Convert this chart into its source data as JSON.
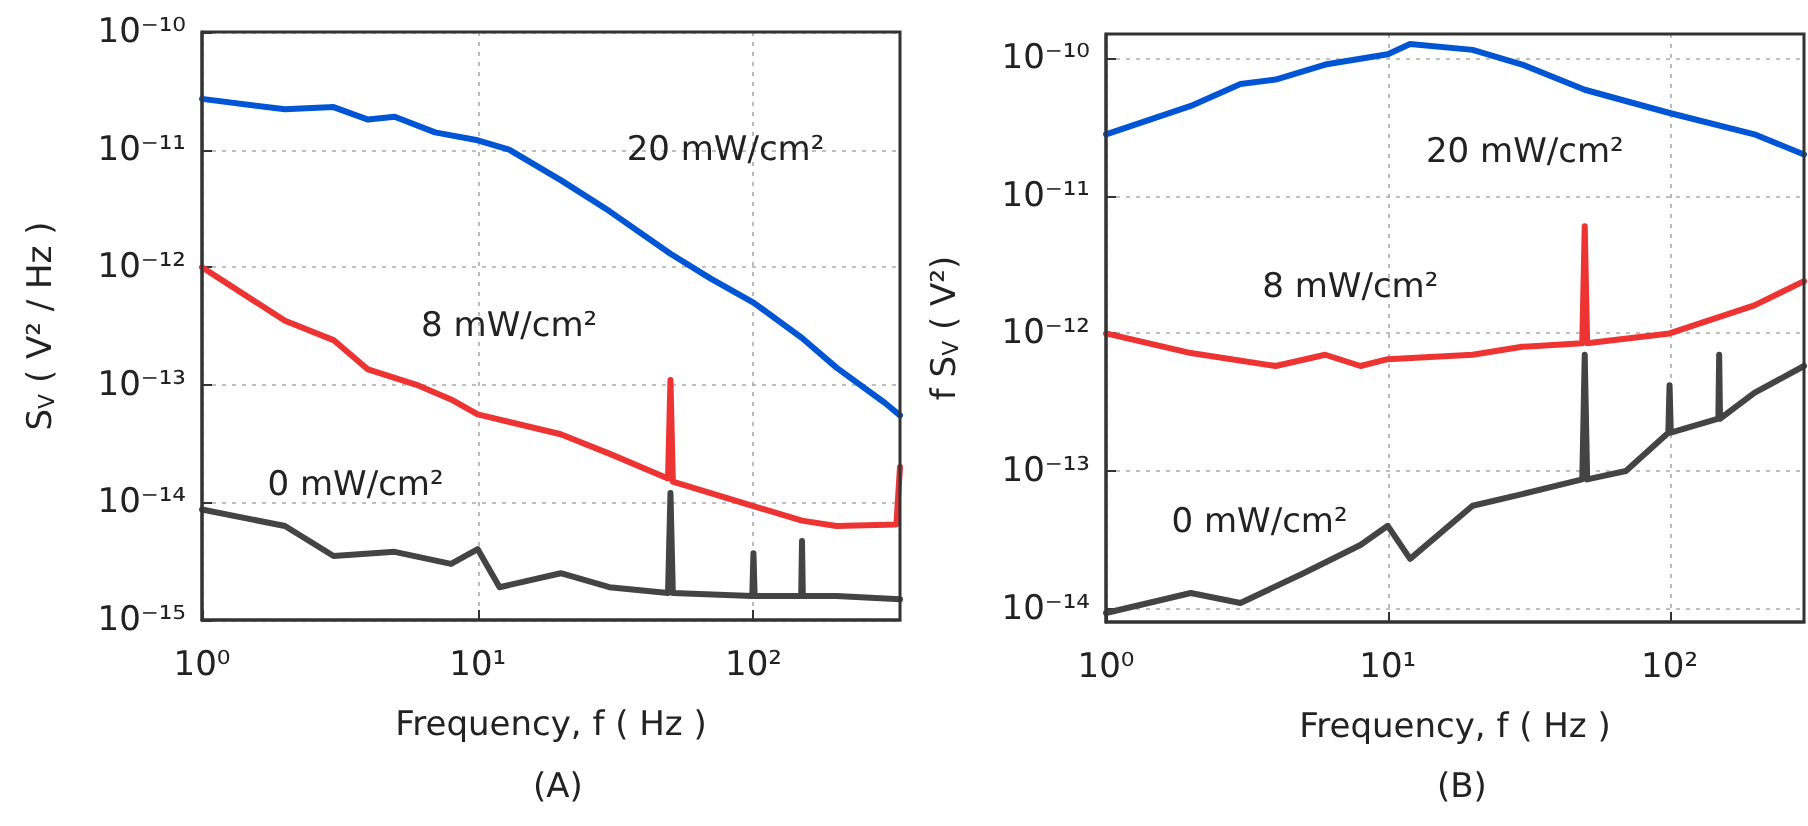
{
  "chart_data": [
    {
      "type": "line",
      "title": "(A)",
      "xlabel": "Frequency, f ( Hz )",
      "ylabel": "S$_{V}$ ( V² / Hz )",
      "log": "xy",
      "grid": true,
      "marker": "none",
      "line_style": "solid",
      "xlim": [
        1,
        340
      ],
      "ylim": [
        1e-15,
        1e-10
      ],
      "xticks": [
        {
          "value": 1,
          "label": "10⁰"
        },
        {
          "value": 10,
          "label": "10¹"
        },
        {
          "value": 100,
          "label": "10²"
        }
      ],
      "yticks": [
        {
          "value": 1e-15,
          "label": "10⁻¹⁵"
        },
        {
          "value": 1e-14,
          "label": "10⁻¹⁴"
        },
        {
          "value": 1e-13,
          "label": "10⁻¹³"
        },
        {
          "value": 1e-12,
          "label": "10⁻¹²"
        },
        {
          "value": 1e-11,
          "label": "10⁻¹¹"
        },
        {
          "value": 1e-10,
          "label": "10⁻¹⁰"
        }
      ],
      "series": [
        {
          "color": "#0055d4",
          "x": [
            1,
            2,
            3,
            4,
            5,
            7,
            10,
            13,
            20,
            30,
            50,
            70,
            100,
            150,
            200,
            300,
            340
          ],
          "values": [
            2.7e-11,
            2.2e-11,
            2.3e-11,
            1.8e-11,
            1.9e-11,
            1.4e-11,
            1.2e-11,
            1e-11,
            5.5e-12,
            3e-12,
            1.3e-12,
            8e-13,
            5e-13,
            2.5e-13,
            1.4e-13,
            7e-14,
            5.5e-14
          ]
        },
        {
          "color": "#ee3333",
          "x": [
            1,
            2,
            3,
            4,
            6,
            8,
            10,
            20,
            30,
            49,
            50,
            51,
            100,
            150,
            200,
            330,
            340
          ],
          "values": [
            1e-12,
            3.5e-13,
            2.4e-13,
            1.35e-13,
            1e-13,
            7.5e-14,
            5.6e-14,
            3.8e-14,
            2.6e-14,
            1.6e-14,
            1.1e-13,
            1.5e-14,
            9.3e-15,
            7e-15,
            6.3e-15,
            6.5e-15,
            2e-14
          ]
        },
        {
          "color": "#444444",
          "x": [
            1,
            2,
            3,
            5,
            8,
            10,
            12,
            20,
            30,
            49,
            50,
            51,
            99,
            100,
            101,
            149,
            150,
            151,
            200,
            340
          ],
          "values": [
            8.7e-15,
            6.3e-15,
            3.5e-15,
            3.8e-15,
            3e-15,
            4e-15,
            1.9e-15,
            2.5e-15,
            1.9e-15,
            1.7e-15,
            1.2e-14,
            1.7e-15,
            1.6e-15,
            3.7e-15,
            1.6e-15,
            1.6e-15,
            4.7e-15,
            1.6e-15,
            1.6e-15,
            1.5e-15
          ]
        }
      ],
      "annotations": [
        "20 mW/cm²",
        "8 mW/cm²",
        "0 mW/cm²"
      ]
    },
    {
      "type": "line",
      "title": "(B)",
      "xlabel": "Frequency, f ( Hz )",
      "ylabel": "f S$_{V}$ ( V²)",
      "log": "xy",
      "grid": true,
      "marker": "none",
      "line_style": "solid",
      "xlim": [
        1,
        300
      ],
      "ylim": [
        8e-15,
        1.5e-10
      ],
      "xticks": [
        {
          "value": 1,
          "label": "10⁰"
        },
        {
          "value": 10,
          "label": "10¹"
        },
        {
          "value": 100,
          "label": "10²"
        }
      ],
      "yticks": [
        {
          "value": 1e-14,
          "label": "10⁻¹⁴"
        },
        {
          "value": 1e-13,
          "label": "10⁻¹³"
        },
        {
          "value": 1e-12,
          "label": "10⁻¹²"
        },
        {
          "value": 1e-11,
          "label": "10⁻¹¹"
        },
        {
          "value": 1e-10,
          "label": "10⁻¹⁰"
        }
      ],
      "series": [
        {
          "color": "#0055d4",
          "x": [
            1,
            2,
            3,
            4,
            6,
            10,
            12,
            20,
            30,
            50,
            100,
            200,
            300
          ],
          "values": [
            2.8e-11,
            4.5e-11,
            6.5e-11,
            7e-11,
            9e-11,
            1.07e-10,
            1.27e-10,
            1.15e-10,
            9e-11,
            5.9e-11,
            4e-11,
            2.8e-11,
            2e-11
          ]
        },
        {
          "color": "#ee3333",
          "x": [
            1,
            2,
            4,
            6,
            8,
            10,
            20,
            30,
            49,
            50,
            51,
            100,
            200,
            300
          ],
          "values": [
            1e-12,
            7.2e-13,
            5.8e-13,
            7e-13,
            5.8e-13,
            6.5e-13,
            7e-13,
            8e-13,
            8.5e-13,
            6e-12,
            8.5e-13,
            1e-12,
            1.6e-12,
            2.4e-12
          ]
        },
        {
          "color": "#444444",
          "x": [
            1,
            2,
            3,
            5,
            8,
            10,
            12,
            20,
            30,
            49,
            50,
            51,
            70,
            99,
            100,
            101,
            149,
            150,
            151,
            200,
            300
          ],
          "values": [
            9.3e-15,
            1.3e-14,
            1.1e-14,
            1.8e-14,
            2.9e-14,
            4e-14,
            2.3e-14,
            5.6e-14,
            6.8e-14,
            8.7e-14,
            7e-13,
            8.7e-14,
            1e-13,
            1.9e-13,
            4.2e-13,
            1.9e-13,
            2.4e-13,
            7e-13,
            2.4e-13,
            3.7e-13,
            5.8e-13
          ]
        }
      ],
      "annotations": [
        "20 mW/cm²",
        "8 mW/cm²",
        "0 mW/cm²"
      ]
    }
  ]
}
